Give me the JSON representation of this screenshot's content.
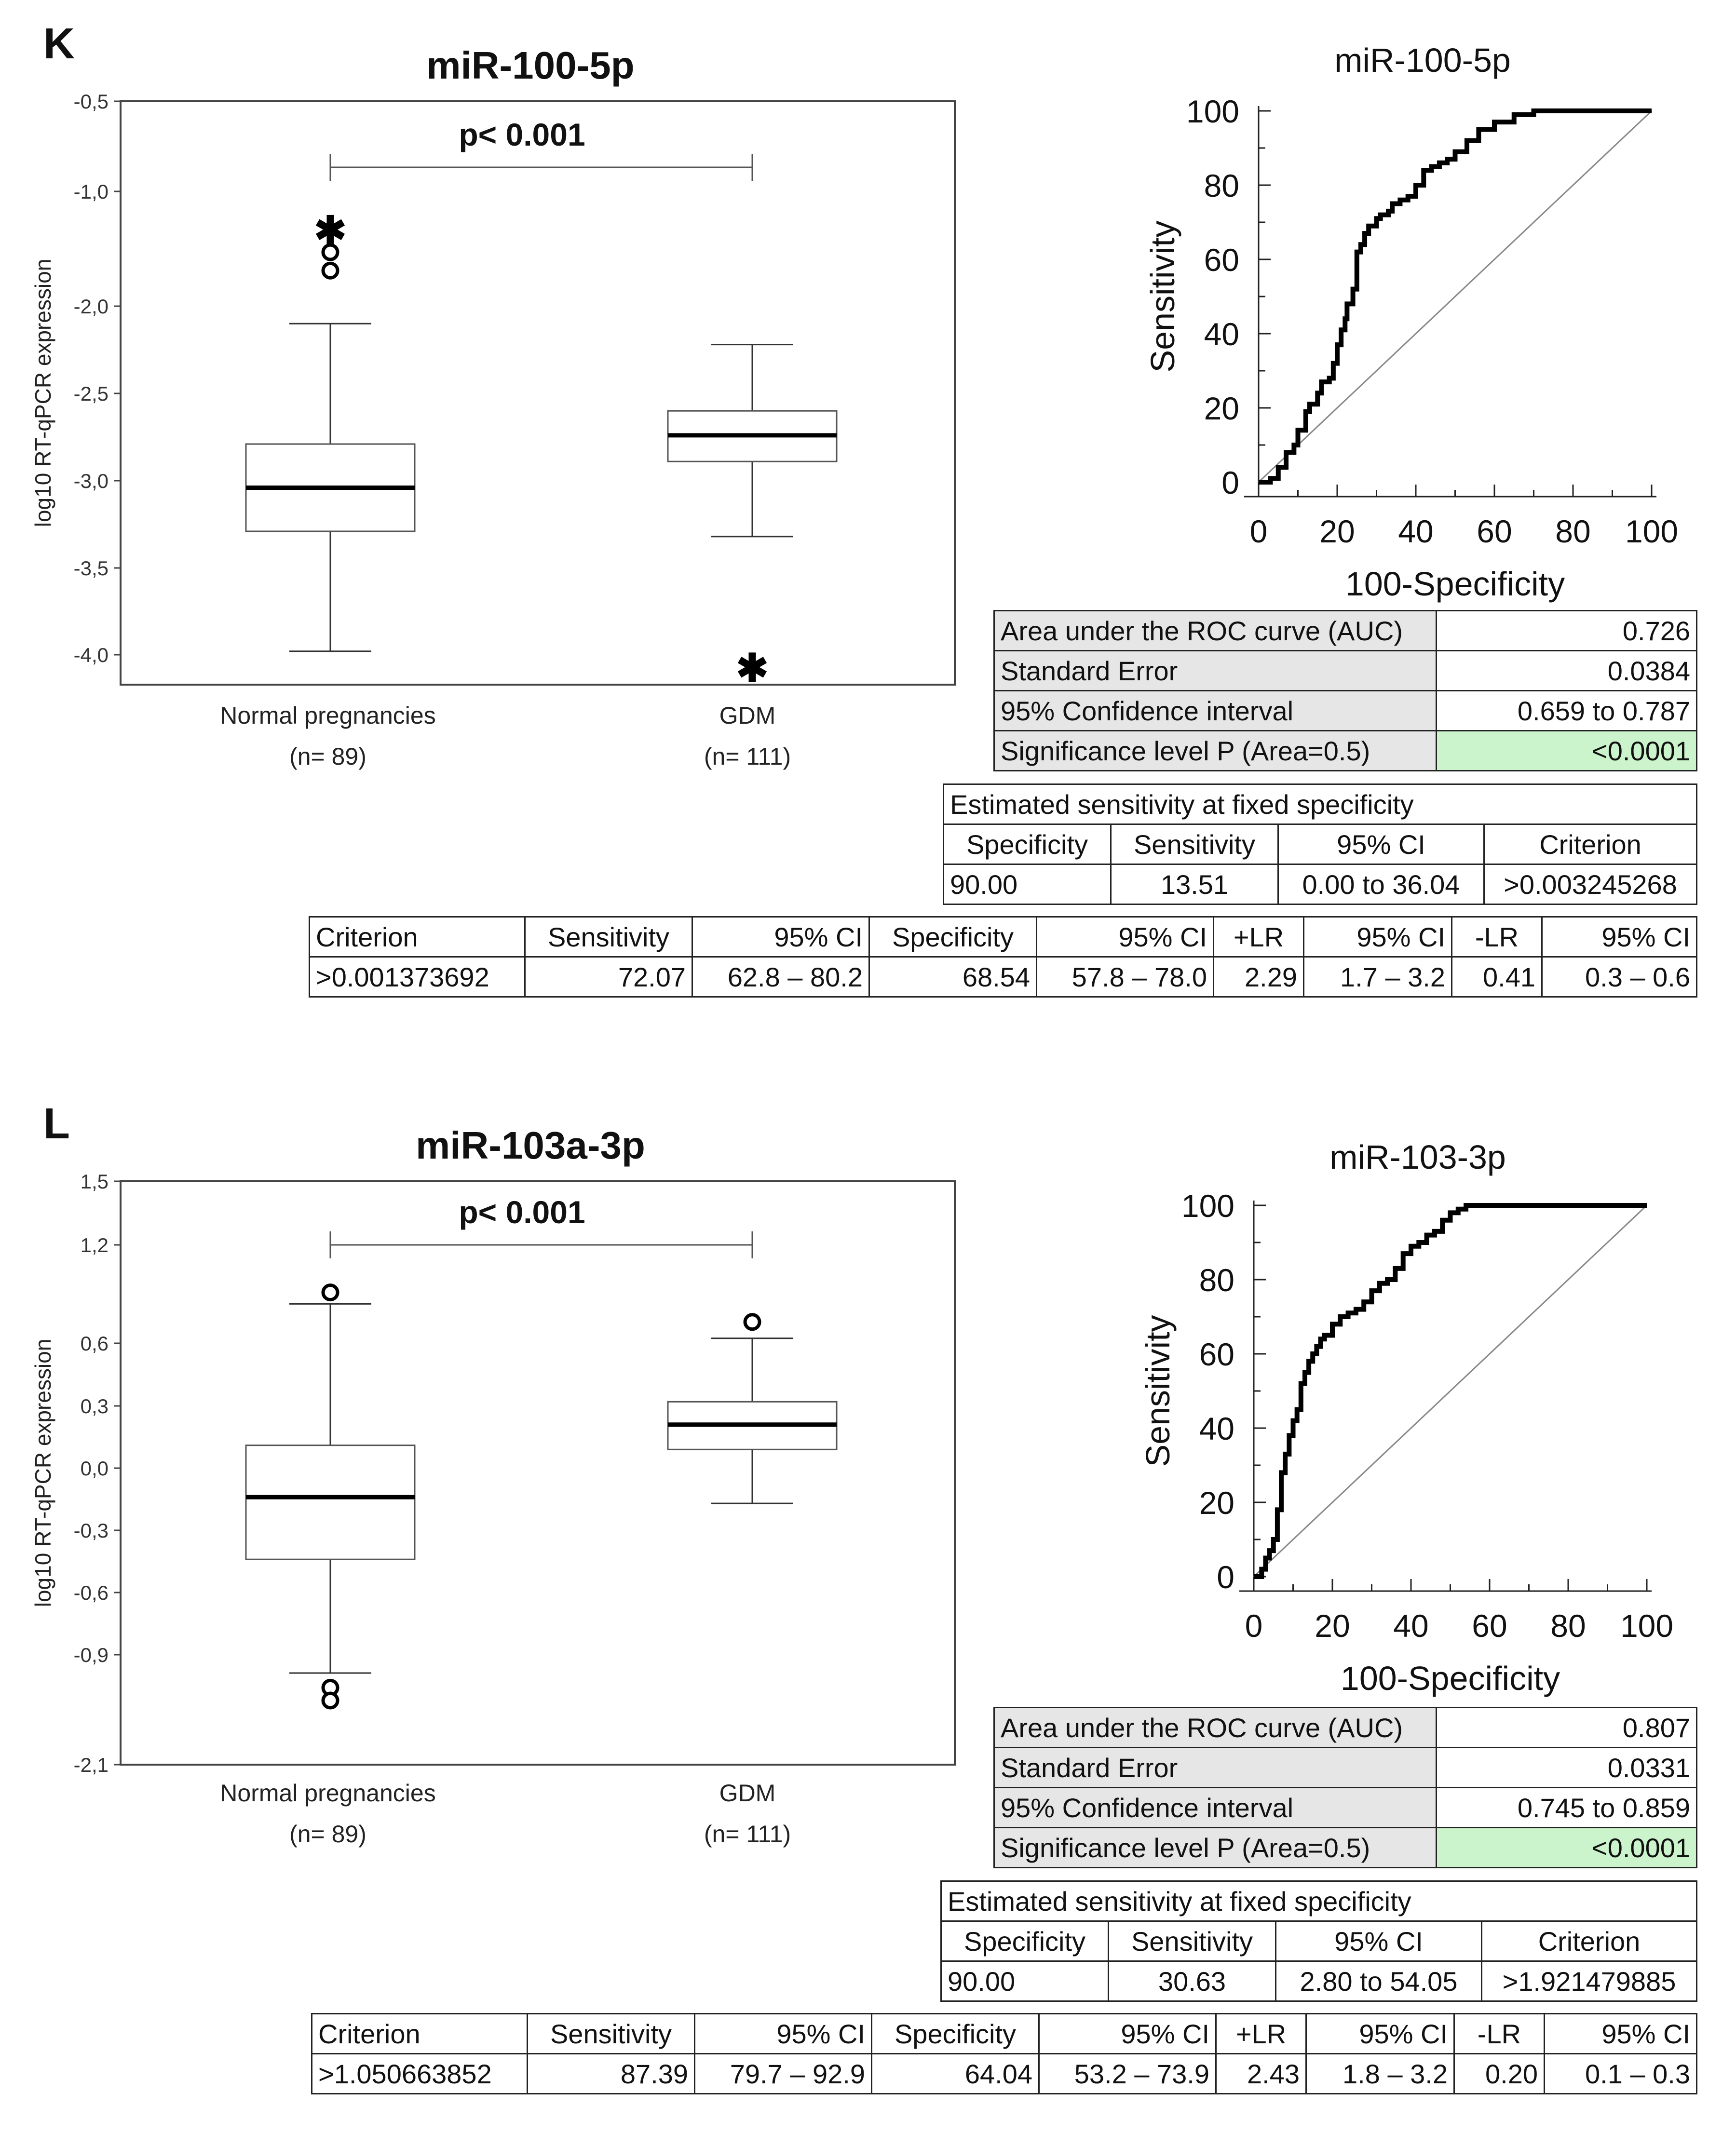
{
  "panels": [
    {
      "letter": "K",
      "box_title": "miR-100-5p",
      "roc_title": "miR-100-5p",
      "p_label": "p< 0.001",
      "groups": [
        {
          "label": "Normal pregnancies",
          "n": "(n= 89)"
        },
        {
          "label": "GDM",
          "n": "(n= 111)"
        }
      ],
      "auc_table": [
        [
          "Area under the ROC curve (AUC)",
          "0.726"
        ],
        [
          "Standard Error",
          "0.0384"
        ],
        [
          "95% Confidence interval",
          "0.659 to 0.787"
        ],
        [
          "Significance level P (Area=0.5)",
          "<0.0001"
        ]
      ],
      "est_table": {
        "title": "Estimated sensitivity at fixed specificity",
        "headers": [
          "Specificity",
          "Sensitivity",
          "95% CI",
          "Criterion"
        ],
        "row": [
          "90.00",
          "13.51",
          "0.00 to 36.04",
          ">0.003245268"
        ]
      },
      "crit_table": {
        "headers": [
          "Criterion",
          "Sensitivity",
          "95% CI",
          "Specificity",
          "95% CI",
          "+LR",
          "95% CI",
          "-LR",
          "95% CI"
        ],
        "row": [
          ">0.001373692",
          "72.07",
          "62.8 – 80.2",
          "68.54",
          "57.8 – 78.0",
          "2.29",
          "1.7 – 3.2",
          "0.41",
          "0.3 – 0.6"
        ]
      }
    },
    {
      "letter": "L",
      "box_title": "miR-103a-3p",
      "roc_title": "miR-103-3p",
      "p_label": "p< 0.001",
      "groups": [
        {
          "label": "Normal pregnancies",
          "n": "(n= 89)"
        },
        {
          "label": "GDM",
          "n": "(n= 111)"
        }
      ],
      "auc_table": [
        [
          "Area under the ROC curve (AUC)",
          "0.807"
        ],
        [
          "Standard Error",
          "0.0331"
        ],
        [
          "95% Confidence interval",
          "0.745 to 0.859"
        ],
        [
          "Significance level P (Area=0.5)",
          "<0.0001"
        ]
      ],
      "est_table": {
        "title": "Estimated sensitivity at fixed specificity",
        "headers": [
          "Specificity",
          "Sensitivity",
          "95% CI",
          "Criterion"
        ],
        "row": [
          "90.00",
          "30.63",
          "2.80 to 54.05",
          ">1.921479885"
        ]
      },
      "crit_table": {
        "headers": [
          "Criterion",
          "Sensitivity",
          "95% CI",
          "Specificity",
          "95% CI",
          "+LR",
          "95% CI",
          "-LR",
          "95% CI"
        ],
        "row": [
          ">1.050663852",
          "87.39",
          "79.7 – 92.9",
          "64.04",
          "53.2 – 73.9",
          "2.43",
          "1.8 – 3.2",
          "0.20",
          "0.1 – 0.3"
        ]
      }
    }
  ],
  "chart_data": [
    {
      "type": "box",
      "title": "miR-100-5p",
      "ylabel": "log10 RT-qPCR expression",
      "ytick_labels": [
        "-0,5",
        "-1,0",
        "-2,0",
        "-2,5",
        "-3,0",
        "-3,5",
        "-4,0"
      ],
      "ylim": [
        -4.2,
        -0.5
      ],
      "categories": [
        "Normal pregnancies",
        "GDM"
      ],
      "boxes": [
        {
          "min": -3.98,
          "q1": -3.29,
          "median": -3.04,
          "q3": -2.79,
          "max": -2.1,
          "outliers": [
            -1.53,
            -1.69
          ],
          "extremes": [
            -1.33
          ]
        },
        {
          "min": -3.32,
          "q1": -2.89,
          "median": -2.74,
          "q3": -2.6,
          "max": -2.22,
          "outliers": [],
          "extremes": [
            -4.07
          ]
        }
      ],
      "annotation": "p< 0.001",
      "color_line": "#000000"
    },
    {
      "type": "line",
      "title": "miR-100-5p",
      "xlabel": "100-Specificity",
      "ylabel": "Sensitivity",
      "xlim": [
        0,
        100
      ],
      "ylim": [
        0,
        100
      ],
      "xticks": [
        0,
        20,
        40,
        60,
        80,
        100
      ],
      "yticks": [
        0,
        20,
        40,
        60,
        80,
        100
      ],
      "x": [
        0,
        3,
        5,
        7,
        9,
        10,
        12,
        13,
        15,
        16,
        18,
        19,
        20,
        21,
        22,
        22.5,
        24,
        25,
        26,
        27,
        28,
        30,
        31,
        33,
        34,
        36,
        38,
        40,
        42,
        44,
        46,
        48,
        50,
        53,
        56,
        60,
        65,
        70,
        80,
        100
      ],
      "y": [
        0,
        1,
        4,
        8,
        10,
        14,
        19,
        21,
        24,
        27,
        28,
        32,
        37,
        41,
        44,
        48,
        52,
        62,
        64,
        67,
        69,
        71,
        72,
        73,
        75,
        76,
        77,
        80,
        84,
        85,
        86,
        87,
        89,
        92,
        95,
        97,
        99,
        100,
        100,
        100
      ],
      "diagonal": true,
      "auc": "0.726"
    },
    {
      "type": "box",
      "title": "miR-103a-3p",
      "ylabel": "log10 RT-qPCR expression",
      "ytick_labels": [
        "1,5",
        "1,2",
        "0,6",
        "0,3",
        "0,0",
        "-0,3",
        "-0,6",
        "-0,9",
        "-2,1"
      ],
      "ylim": [
        -2.1,
        1.5
      ],
      "categories": [
        "Normal pregnancies",
        "GDM"
      ],
      "boxes": [
        {
          "min": -1.1,
          "q1": -0.44,
          "median": -0.14,
          "q3": 0.11,
          "max": 0.84,
          "outliers": [
            0.91,
            -1.26,
            -1.4
          ],
          "extremes": []
        },
        {
          "min": -0.17,
          "q1": 0.09,
          "median": 0.21,
          "q3": 0.32,
          "max": 0.63,
          "outliers": [
            0.73
          ],
          "extremes": []
        }
      ],
      "annotation": "p< 0.001",
      "color_line": "#000000"
    },
    {
      "type": "line",
      "title": "miR-103-3p",
      "xlabel": "100-Specificity",
      "ylabel": "Sensitivity",
      "xlim": [
        0,
        100
      ],
      "ylim": [
        0,
        100
      ],
      "xticks": [
        0,
        20,
        40,
        60,
        80,
        100
      ],
      "yticks": [
        0,
        20,
        40,
        60,
        80,
        100
      ],
      "x": [
        0,
        2,
        3,
        4,
        5,
        6,
        7,
        8,
        9,
        10,
        11,
        12,
        13,
        14,
        15,
        16,
        17,
        18,
        20,
        22,
        24,
        26,
        28,
        30,
        32,
        34,
        36,
        38,
        40,
        42,
        44,
        46,
        48,
        50,
        52,
        54,
        56,
        60,
        70,
        100
      ],
      "y": [
        0,
        2,
        5,
        7,
        10,
        18,
        28,
        33,
        38,
        42,
        45,
        52,
        55,
        58,
        60,
        62,
        64,
        65,
        68,
        70,
        71,
        72,
        74,
        77,
        79,
        80,
        83,
        87,
        89,
        90,
        92,
        93,
        96,
        98,
        99,
        100,
        100,
        100,
        100,
        100
      ],
      "diagonal": true,
      "auc": "0.807"
    }
  ]
}
